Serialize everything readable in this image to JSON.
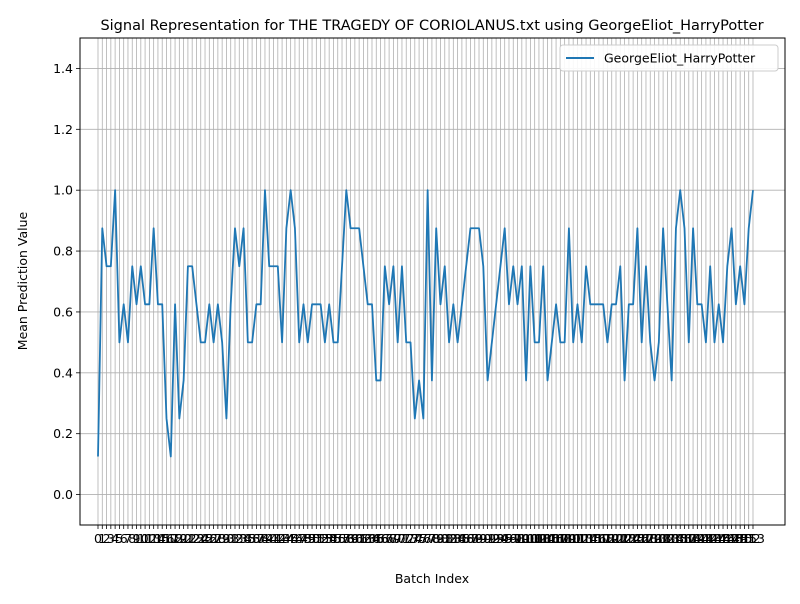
{
  "chart_data": {
    "type": "line",
    "title": "Signal Representation for THE TRAGEDY OF CORIOLANUS.txt using GeorgeEliot_HarryPotter",
    "xlabel": "Batch Index",
    "ylabel": "Mean Prediction Value",
    "xlim": [
      0,
      183
    ],
    "ylim": [
      -0.1,
      1.5
    ],
    "yticks": [
      0.0,
      0.2,
      0.4,
      0.6,
      0.8,
      1.0,
      1.2,
      1.4
    ],
    "ytick_labels": [
      "0.0",
      "0.2",
      "0.4",
      "0.6",
      "0.8",
      "1.0",
      "1.2",
      "1.4"
    ],
    "grid": true,
    "legend_position": "top-right",
    "series": [
      {
        "name": "GeorgeEliot_HarryPotter",
        "color": "#1f77b4",
        "values": [
          0.125,
          0.875,
          0.75,
          0.75,
          1.0,
          0.5,
          0.625,
          0.5,
          0.75,
          0.625,
          0.75,
          0.625,
          0.625,
          0.875,
          0.625,
          0.625,
          0.25,
          0.125,
          0.625,
          0.25,
          0.375,
          0.75,
          0.75,
          0.625,
          0.5,
          0.5,
          0.625,
          0.5,
          0.625,
          0.5,
          0.25,
          0.625,
          0.875,
          0.75,
          0.875,
          0.5,
          0.5,
          0.625,
          0.625,
          1.0,
          0.75,
          0.75,
          0.75,
          0.5,
          0.875,
          1.0,
          0.875,
          0.5,
          0.625,
          0.5,
          0.625,
          0.625,
          0.625,
          0.5,
          0.625,
          0.5,
          0.5,
          0.75,
          1.0,
          0.875,
          0.875,
          0.875,
          0.75,
          0.625,
          0.625,
          0.375,
          0.375,
          0.75,
          0.625,
          0.75,
          0.5,
          0.75,
          0.5,
          0.5,
          0.25,
          0.375,
          0.25,
          1.0,
          0.375,
          0.875,
          0.625,
          0.75,
          0.5,
          0.625,
          0.5,
          0.625,
          0.75,
          0.875,
          0.875,
          0.875,
          0.75,
          0.375,
          0.5,
          0.625,
          0.75,
          0.875,
          0.625,
          0.75,
          0.625,
          0.75,
          0.375,
          0.75,
          0.5,
          0.5,
          0.75,
          0.375,
          0.5,
          0.625,
          0.5,
          0.5,
          0.875,
          0.5,
          0.625,
          0.5,
          0.75,
          0.625,
          0.625,
          0.625,
          0.625,
          0.5,
          0.625,
          0.625,
          0.75,
          0.375,
          0.625,
          0.625,
          0.875,
          0.5,
          0.75,
          0.5,
          0.375,
          0.5,
          0.875,
          0.625,
          0.375,
          0.875,
          1.0,
          0.875,
          0.5,
          0.875,
          0.625,
          0.625,
          0.5,
          0.75,
          0.5,
          0.625,
          0.5,
          0.75,
          0.875,
          0.625,
          0.75,
          0.625,
          0.875,
          1.0
        ]
      }
    ],
    "xtick_labels": [
      "0",
      "1",
      "2",
      "3",
      "4",
      "5",
      "6",
      "7",
      "8",
      "9",
      "10",
      "11",
      "12",
      "13",
      "14",
      "15",
      "16",
      "17",
      "18",
      "19",
      "20",
      "21",
      "22",
      "23",
      "24",
      "25",
      "26",
      "27",
      "28",
      "29",
      "30",
      "31",
      "32",
      "33",
      "34",
      "35",
      "36",
      "37",
      "38",
      "39",
      "40",
      "41",
      "42",
      "43",
      "44",
      "45",
      "46",
      "47",
      "48",
      "49",
      "50",
      "51",
      "52",
      "53",
      "54",
      "55",
      "56",
      "57",
      "58",
      "59",
      "60",
      "61",
      "62",
      "63",
      "64",
      "65",
      "66",
      "67",
      "68",
      "69",
      "70",
      "71",
      "72",
      "73",
      "74",
      "75",
      "76",
      "77",
      "78",
      "79",
      "80",
      "81",
      "82",
      "83",
      "84",
      "85",
      "86",
      "87",
      "88",
      "89",
      "90",
      "91",
      "92",
      "93",
      "94",
      "95",
      "96",
      "97",
      "98",
      "99",
      "100",
      "101",
      "102",
      "103",
      "104",
      "105",
      "106",
      "107",
      "108",
      "109",
      "110",
      "111",
      "112",
      "113",
      "114",
      "115",
      "116",
      "117",
      "118",
      "119",
      "120",
      "121",
      "122",
      "123",
      "124",
      "125",
      "126",
      "127",
      "128",
      "129",
      "130",
      "131",
      "132",
      "133",
      "134",
      "135",
      "136",
      "137",
      "138",
      "139",
      "140",
      "141",
      "142",
      "143",
      "144",
      "145",
      "146",
      "147",
      "148",
      "149",
      "150",
      "151",
      "152",
      "153"
    ]
  }
}
